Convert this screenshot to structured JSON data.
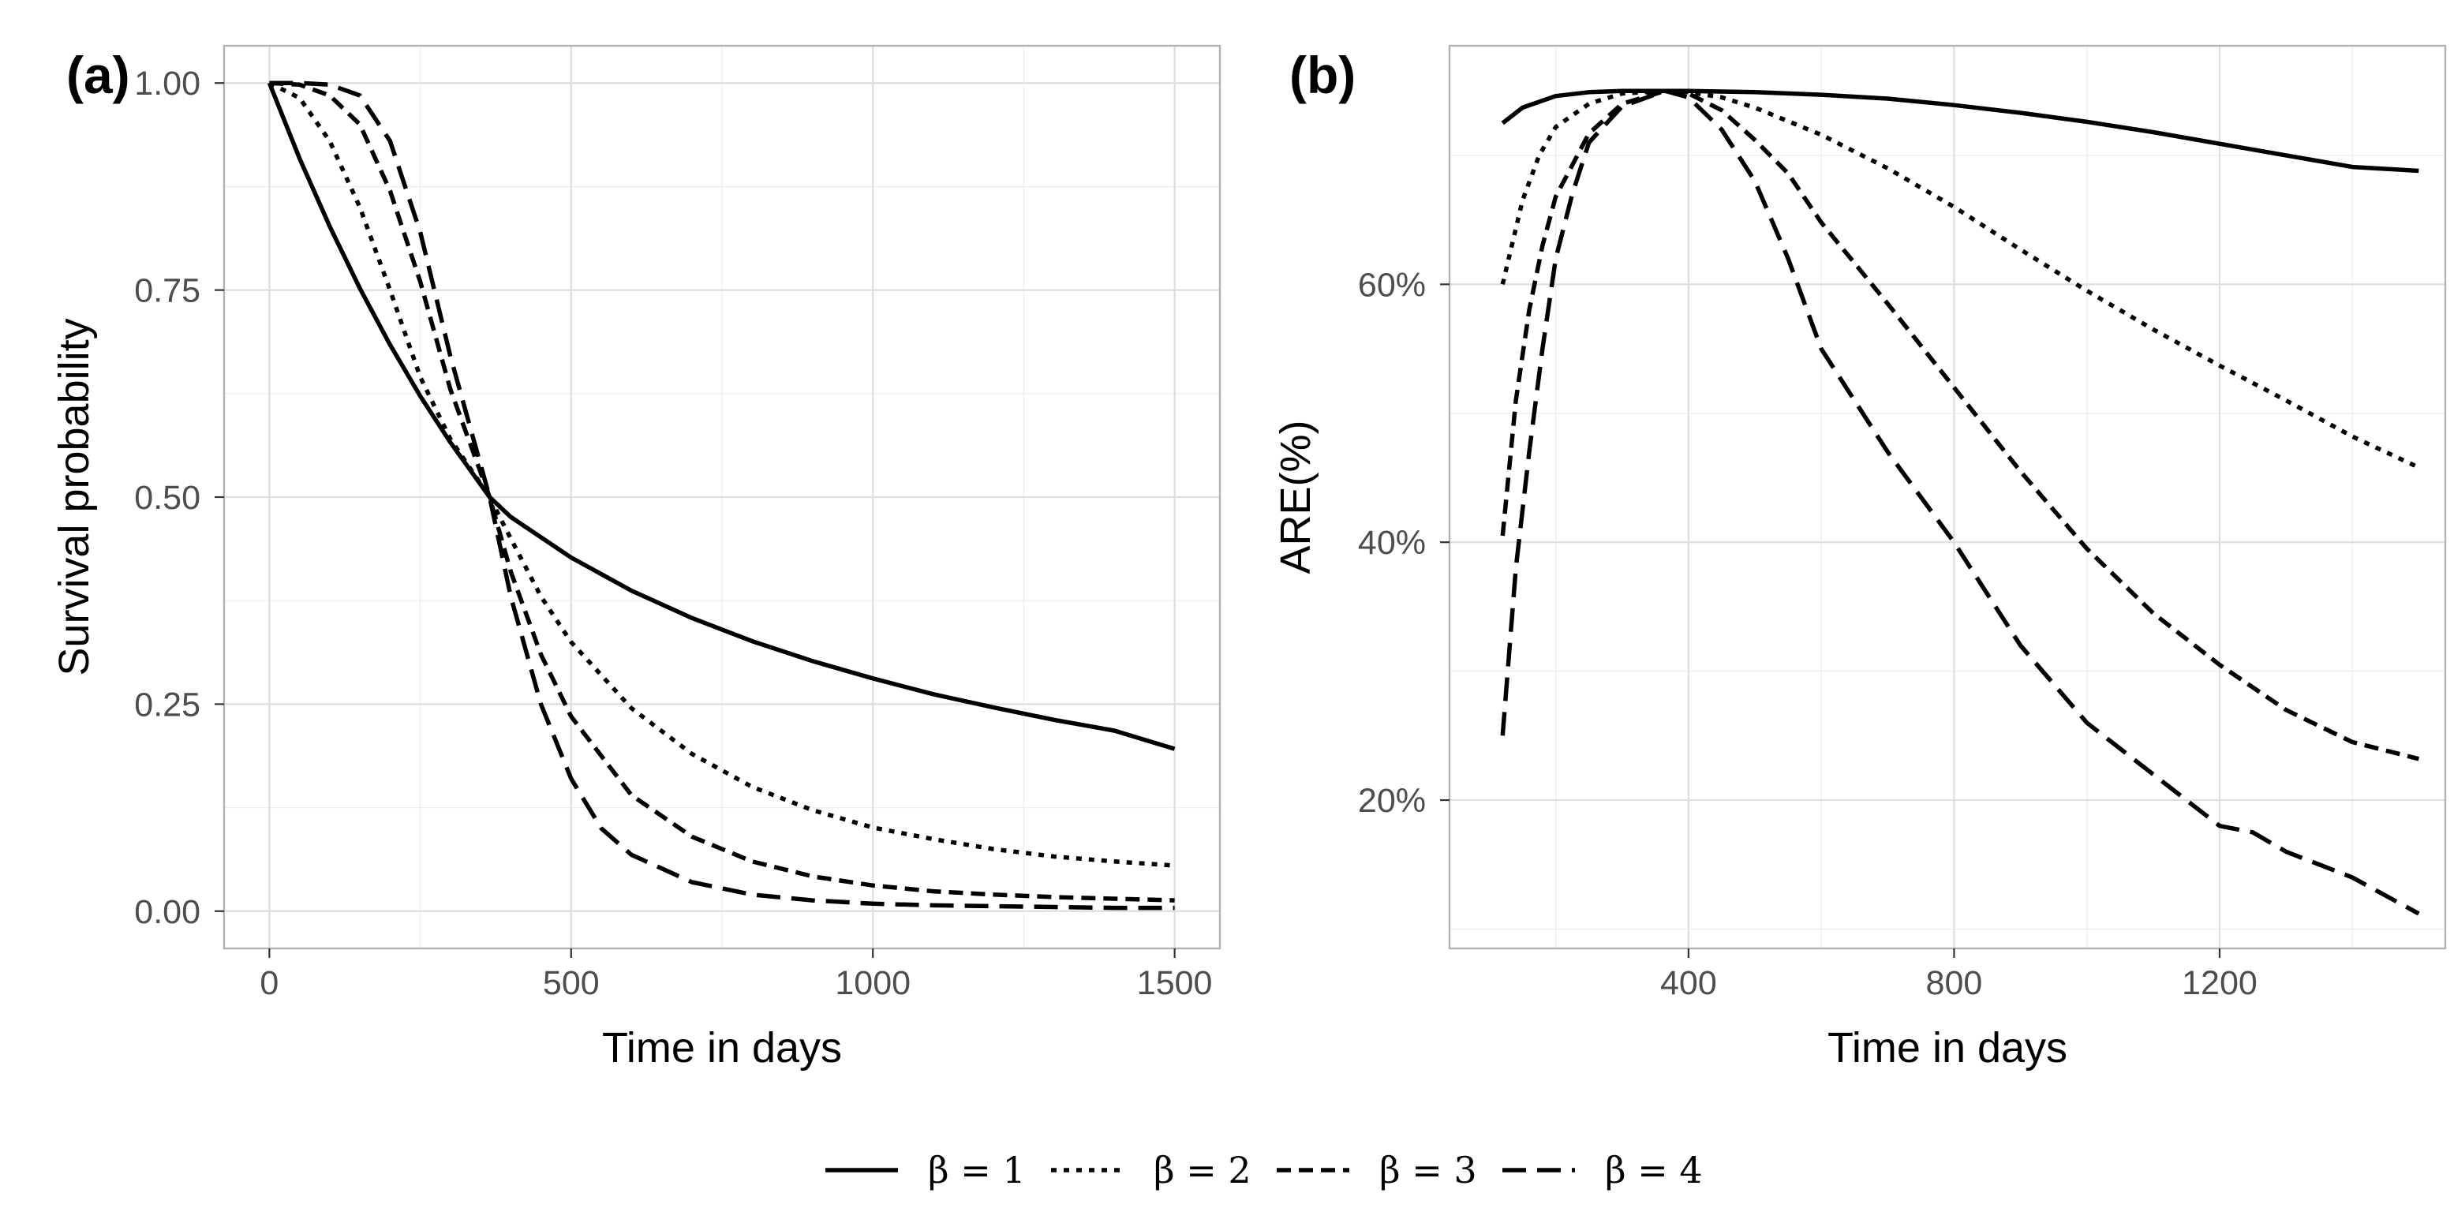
{
  "chart_data": [
    {
      "type": "line",
      "tag": "(a)",
      "xlabel": "Time in days",
      "ylabel": "Survival probability",
      "xlim": [
        -75,
        1575
      ],
      "ylim": [
        -0.045,
        1.045
      ],
      "xticks": [
        0,
        500,
        1000,
        1500
      ],
      "xtick_labels": [
        "0",
        "500",
        "1000",
        "1500"
      ],
      "yticks": [
        0,
        0.25,
        0.5,
        0.75,
        1
      ],
      "ytick_labels": [
        "0.00",
        "0.25",
        "0.50",
        "0.75",
        "1.00"
      ],
      "grid": true,
      "series": [
        {
          "name": "β = 1",
          "dash": "",
          "points": [
            [
              0,
              1.0
            ],
            [
              50,
              0.909
            ],
            [
              100,
              0.827
            ],
            [
              150,
              0.752
            ],
            [
              200,
              0.684
            ],
            [
              250,
              0.622
            ],
            [
              300,
              0.566
            ],
            [
              365,
              0.5
            ],
            [
              400,
              0.476
            ],
            [
              500,
              0.427
            ],
            [
              600,
              0.387
            ],
            [
              700,
              0.354
            ],
            [
              800,
              0.326
            ],
            [
              900,
              0.302
            ],
            [
              1000,
              0.281
            ],
            [
              1100,
              0.262
            ],
            [
              1200,
              0.246
            ],
            [
              1300,
              0.231
            ],
            [
              1400,
              0.218
            ],
            [
              1500,
              0.196
            ]
          ]
        },
        {
          "name": "β = 2",
          "dash": "7 9",
          "points": [
            [
              0,
              1.0
            ],
            [
              50,
              0.982
            ],
            [
              100,
              0.93
            ],
            [
              150,
              0.85
            ],
            [
              200,
              0.75
            ],
            [
              250,
              0.645
            ],
            [
              300,
              0.57
            ],
            [
              365,
              0.5
            ],
            [
              400,
              0.45
            ],
            [
              450,
              0.38
            ],
            [
              500,
              0.325
            ],
            [
              600,
              0.245
            ],
            [
              700,
              0.19
            ],
            [
              800,
              0.15
            ],
            [
              900,
              0.122
            ],
            [
              1000,
              0.101
            ],
            [
              1100,
              0.087
            ],
            [
              1200,
              0.075
            ],
            [
              1300,
              0.066
            ],
            [
              1400,
              0.06
            ],
            [
              1500,
              0.055
            ]
          ]
        },
        {
          "name": "β = 3",
          "dash": "18 10",
          "points": [
            [
              0,
              1.0
            ],
            [
              50,
              0.998
            ],
            [
              100,
              0.985
            ],
            [
              150,
              0.95
            ],
            [
              200,
              0.87
            ],
            [
              250,
              0.76
            ],
            [
              300,
              0.63
            ],
            [
              365,
              0.5
            ],
            [
              400,
              0.41
            ],
            [
              450,
              0.31
            ],
            [
              500,
              0.235
            ],
            [
              600,
              0.14
            ],
            [
              700,
              0.09
            ],
            [
              800,
              0.06
            ],
            [
              900,
              0.042
            ],
            [
              1000,
              0.031
            ],
            [
              1100,
              0.024
            ],
            [
              1200,
              0.02
            ],
            [
              1300,
              0.017
            ],
            [
              1400,
              0.015
            ],
            [
              1500,
              0.013
            ]
          ]
        },
        {
          "name": "β = 4",
          "dash": "30 14",
          "points": [
            [
              0,
              1.0
            ],
            [
              50,
              1.0
            ],
            [
              100,
              0.998
            ],
            [
              150,
              0.985
            ],
            [
              200,
              0.93
            ],
            [
              250,
              0.82
            ],
            [
              300,
              0.67
            ],
            [
              365,
              0.5
            ],
            [
              400,
              0.38
            ],
            [
              450,
              0.25
            ],
            [
              500,
              0.16
            ],
            [
              550,
              0.1
            ],
            [
              600,
              0.068
            ],
            [
              700,
              0.035
            ],
            [
              800,
              0.02
            ],
            [
              900,
              0.013
            ],
            [
              1000,
              0.009
            ],
            [
              1100,
              0.007
            ],
            [
              1200,
              0.006
            ],
            [
              1300,
              0.005
            ],
            [
              1400,
              0.004
            ],
            [
              1500,
              0.004
            ]
          ]
        }
      ]
    },
    {
      "type": "line",
      "tag": "(b)",
      "xlabel": "Time in days",
      "ylabel": "ARE(%)",
      "xlim": [
        40,
        1540
      ],
      "ylim": [
        0.085,
        0.785
      ],
      "xticks": [
        400,
        800,
        1200
      ],
      "xtick_labels": [
        "400",
        "800",
        "1200"
      ],
      "xminor": [
        200,
        600,
        1000,
        1400
      ],
      "yticks": [
        0.2,
        0.4,
        0.6
      ],
      "ytick_labels": [
        "20%",
        "40%",
        "60%"
      ],
      "yminor": [
        0.1,
        0.3,
        0.5,
        0.7
      ],
      "grid": true,
      "series": [
        {
          "name": "β = 1",
          "dash": "",
          "points": [
            [
              120,
              0.725
            ],
            [
              150,
              0.737
            ],
            [
              200,
              0.746
            ],
            [
              250,
              0.749
            ],
            [
              300,
              0.75
            ],
            [
              365,
              0.75
            ],
            [
              400,
              0.75
            ],
            [
              500,
              0.749
            ],
            [
              600,
              0.747
            ],
            [
              700,
              0.744
            ],
            [
              800,
              0.739
            ],
            [
              900,
              0.733
            ],
            [
              1000,
              0.726
            ],
            [
              1100,
              0.718
            ],
            [
              1200,
              0.709
            ],
            [
              1300,
              0.7
            ],
            [
              1400,
              0.691
            ],
            [
              1500,
              0.688
            ]
          ]
        },
        {
          "name": "β = 2",
          "dash": "7 9",
          "points": [
            [
              120,
              0.6
            ],
            [
              150,
              0.665
            ],
            [
              175,
              0.7
            ],
            [
              200,
              0.722
            ],
            [
              250,
              0.74
            ],
            [
              300,
              0.748
            ],
            [
              365,
              0.75
            ],
            [
              400,
              0.749
            ],
            [
              450,
              0.745
            ],
            [
              500,
              0.737
            ],
            [
              600,
              0.716
            ],
            [
              700,
              0.69
            ],
            [
              800,
              0.66
            ],
            [
              900,
              0.627
            ],
            [
              1000,
              0.595
            ],
            [
              1100,
              0.565
            ],
            [
              1200,
              0.537
            ],
            [
              1300,
              0.51
            ],
            [
              1400,
              0.482
            ],
            [
              1500,
              0.458
            ]
          ]
        },
        {
          "name": "β = 3",
          "dash": "18 10",
          "points": [
            [
              120,
              0.405
            ],
            [
              140,
              0.51
            ],
            [
              160,
              0.58
            ],
            [
              180,
              0.63
            ],
            [
              200,
              0.668
            ],
            [
              250,
              0.717
            ],
            [
              300,
              0.74
            ],
            [
              365,
              0.75
            ],
            [
              400,
              0.748
            ],
            [
              450,
              0.735
            ],
            [
              500,
              0.712
            ],
            [
              550,
              0.686
            ],
            [
              600,
              0.648
            ],
            [
              700,
              0.585
            ],
            [
              800,
              0.52
            ],
            [
              900,
              0.455
            ],
            [
              1000,
              0.395
            ],
            [
              1100,
              0.345
            ],
            [
              1200,
              0.305
            ],
            [
              1300,
              0.27
            ],
            [
              1400,
              0.245
            ],
            [
              1500,
              0.232
            ]
          ]
        },
        {
          "name": "β = 4",
          "dash": "30 14",
          "points": [
            [
              120,
              0.25
            ],
            [
              140,
              0.38
            ],
            [
              160,
              0.47
            ],
            [
              180,
              0.55
            ],
            [
              200,
              0.62
            ],
            [
              225,
              0.67
            ],
            [
              250,
              0.71
            ],
            [
              300,
              0.738
            ],
            [
              365,
              0.75
            ],
            [
              400,
              0.745
            ],
            [
              450,
              0.72
            ],
            [
              500,
              0.68
            ],
            [
              550,
              0.62
            ],
            [
              600,
              0.55
            ],
            [
              700,
              0.47
            ],
            [
              800,
              0.4
            ],
            [
              900,
              0.32
            ],
            [
              1000,
              0.26
            ],
            [
              1100,
              0.22
            ],
            [
              1200,
              0.18
            ],
            [
              1250,
              0.175
            ],
            [
              1300,
              0.16
            ],
            [
              1400,
              0.14
            ],
            [
              1500,
              0.112
            ]
          ]
        }
      ]
    }
  ],
  "legend": {
    "entries": [
      {
        "label": "β = 1",
        "dash": ""
      },
      {
        "label": "β = 2",
        "dash": "7 9"
      },
      {
        "label": "β = 3",
        "dash": "18 10"
      },
      {
        "label": "β = 4",
        "dash": "30 14"
      }
    ]
  }
}
